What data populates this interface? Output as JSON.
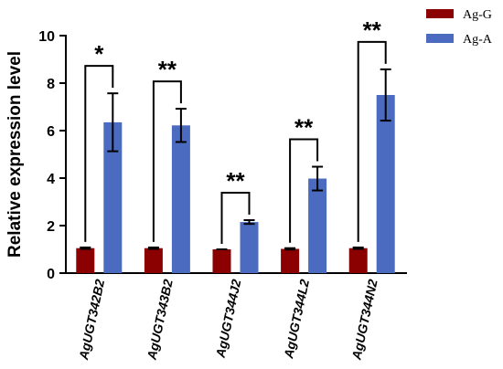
{
  "chart_data": {
    "type": "bar",
    "ylabel": "Relative expression level",
    "xlabel": "",
    "ylim": [
      0,
      10
    ],
    "yticks": [
      0,
      2,
      4,
      6,
      8,
      10
    ],
    "categories": [
      "AgUGT342B2",
      "AgUGT343B2",
      "AgUGT344J2",
      "AgUGT344L2",
      "AgUGT344N2"
    ],
    "series": [
      {
        "name": "Ag-G",
        "color": "#8b0000",
        "values": [
          1.05,
          1.05,
          1.0,
          1.02,
          1.05
        ],
        "errors": [
          0.03,
          0.03,
          0.0,
          0.03,
          0.03
        ]
      },
      {
        "name": "Ag-A",
        "color": "#4a6bbf",
        "values": [
          6.35,
          6.22,
          2.15,
          3.98,
          7.5
        ],
        "errors": [
          1.22,
          0.7,
          0.08,
          0.5,
          1.08
        ]
      }
    ],
    "significance": [
      "*",
      "**",
      "**",
      "**",
      "**"
    ],
    "legend_position": "top-right"
  }
}
